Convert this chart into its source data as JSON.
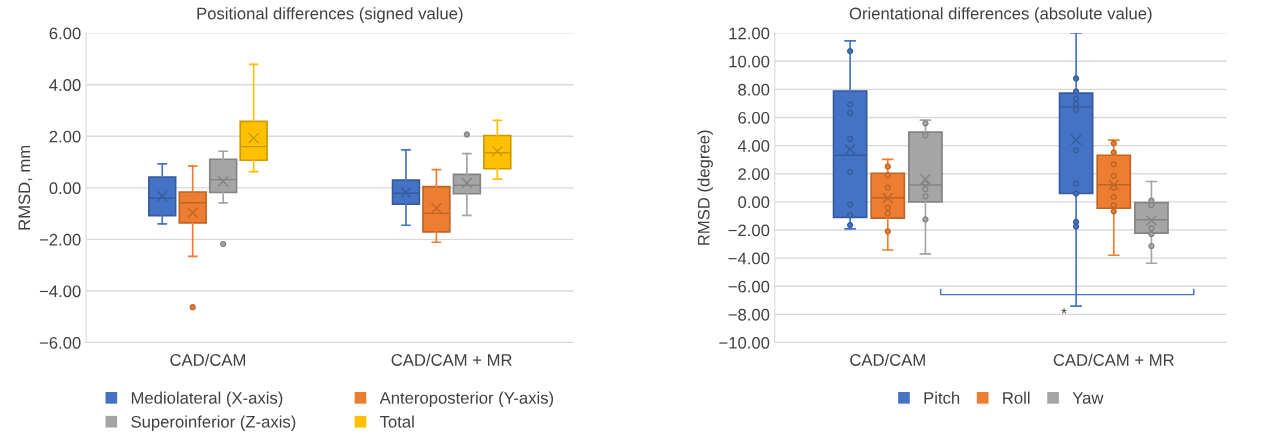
{
  "chart_data": [
    {
      "type": "box",
      "title": "Positional differences (signed value)",
      "ylabel": "RMSD, mm",
      "categories": [
        "CAD/CAM",
        "CAD/CAM + MR"
      ],
      "ylim": [
        -6,
        6
      ],
      "yticks": [
        {
          "value": -6,
          "label": "−6.00"
        },
        {
          "value": -4,
          "label": "−4.00"
        },
        {
          "value": -2,
          "label": "−2.00"
        },
        {
          "value": 0,
          "label": "0.00"
        },
        {
          "value": 2,
          "label": "2.00"
        },
        {
          "value": 4,
          "label": "4.00"
        },
        {
          "value": 6,
          "label": "6.00"
        }
      ],
      "grid": "y",
      "legend": "bottom",
      "series": [
        {
          "name": "Mediolateral (X-axis)",
          "color": "#4472c4",
          "boxes": [
            {
              "low": -1.4,
              "q1": -1.08,
              "median": -0.4,
              "q3": 0.42,
              "high": 0.93,
              "mean": -0.32
            },
            {
              "low": -1.45,
              "q1": -0.63,
              "median": -0.21,
              "q3": 0.3,
              "high": 1.47,
              "mean": -0.18
            }
          ]
        },
        {
          "name": "Anteroposterior (Y-axis)",
          "color": "#ed7d31",
          "boxes": [
            {
              "low": -2.66,
              "q1": -1.36,
              "median": -0.58,
              "q3": -0.16,
              "high": 0.84,
              "mean": -0.96,
              "outliers": [
                -4.63
              ]
            },
            {
              "low": -2.11,
              "q1": -1.71,
              "median": -0.99,
              "q3": 0.05,
              "high": 0.71,
              "mean": -0.79
            }
          ]
        },
        {
          "name": "Superoinferior (Z-axis)",
          "color": "#a5a5a5",
          "boxes": [
            {
              "low": -0.58,
              "q1": -0.18,
              "median": 0.32,
              "q3": 1.11,
              "high": 1.42,
              "mean": 0.25,
              "outliers": [
                -2.18
              ]
            },
            {
              "low": -1.07,
              "q1": -0.23,
              "median": 0.1,
              "q3": 0.52,
              "high": 1.33,
              "mean": 0.19,
              "outliers": [
                2.07
              ]
            }
          ]
        },
        {
          "name": "Total",
          "color": "#ffc000",
          "boxes": [
            {
              "low": 0.63,
              "q1": 1.07,
              "median": 1.6,
              "q3": 2.58,
              "high": 4.79,
              "mean": 1.93
            },
            {
              "low": 0.34,
              "q1": 0.74,
              "median": 1.36,
              "q3": 2.03,
              "high": 2.62,
              "mean": 1.42
            }
          ]
        }
      ]
    },
    {
      "type": "box",
      "title": "Orientational differences (absolute value)",
      "ylabel": "RMSD (degree)",
      "categories": [
        "CAD/CAM",
        "CAD/CAM + MR"
      ],
      "ylim": [
        -10,
        12
      ],
      "yticks": [
        {
          "value": -10,
          "label": "−10.00"
        },
        {
          "value": -8,
          "label": "−8.00"
        },
        {
          "value": -6,
          "label": "−6.00"
        },
        {
          "value": -4,
          "label": "−4.00"
        },
        {
          "value": -2,
          "label": "−2.00"
        },
        {
          "value": 0,
          "label": "0.00"
        },
        {
          "value": 2,
          "label": "2.00"
        },
        {
          "value": 4,
          "label": "4.00"
        },
        {
          "value": 6,
          "label": "6.00"
        },
        {
          "value": 8,
          "label": "8.00"
        },
        {
          "value": 10,
          "label": "10.00"
        },
        {
          "value": 12,
          "label": "12.00"
        }
      ],
      "grid": "y",
      "legend": "bottom",
      "annotations": [
        "*"
      ],
      "series": [
        {
          "name": "Pitch",
          "color": "#4472c4",
          "boxes": [
            {
              "low": -1.92,
              "q1": -1.1,
              "median": 3.32,
              "q3": 7.88,
              "high": 11.45,
              "mean": 3.74,
              "outliers": [
                10.72,
                6.93,
                6.33,
                4.49,
                2.12,
                -0.2,
                -0.95,
                -1.65
              ]
            },
            {
              "low": -7.41,
              "q1": 0.6,
              "median": 6.76,
              "q3": 7.73,
              "high": 12.0,
              "mean": 4.41,
              "outliers": [
                8.78,
                7.86,
                7.36,
                6.96,
                6.56,
                3.67,
                1.3,
                0.6,
                -1.42,
                -1.75
              ]
            }
          ]
        },
        {
          "name": "Roll",
          "color": "#ed7d31",
          "boxes": [
            {
              "low": -3.42,
              "q1": -1.15,
              "median": 0.3,
              "q3": 2.04,
              "high": 3.02,
              "mean": 0.27,
              "outliers": [
                2.52,
                1.9,
                1.02,
                -0.4,
                -0.82,
                -2.09
              ]
            },
            {
              "low": -3.79,
              "q1": -0.45,
              "median": 1.22,
              "q3": 3.32,
              "high": 4.39,
              "mean": 1.22,
              "outliers": [
                4.16,
                3.52,
                2.67,
                1.85,
                1.02,
                0.35,
                -0.22,
                -0.67
              ]
            }
          ]
        },
        {
          "name": "Yaw",
          "color": "#a5a5a5",
          "boxes": [
            {
              "low": -3.69,
              "q1": 0.0,
              "median": 1.2,
              "q3": 4.96,
              "high": 5.81,
              "mean": 1.62,
              "outliers": [
                5.59,
                4.74,
                1.3,
                0.9,
                0.4,
                -1.25
              ]
            },
            {
              "low": -4.36,
              "q1": -2.22,
              "median": -1.27,
              "q3": -0.05,
              "high": 1.45,
              "mean": -1.32,
              "outliers": [
                0.1,
                -0.22,
                -1.87,
                -2.29,
                -3.14
              ]
            }
          ]
        }
      ]
    }
  ]
}
